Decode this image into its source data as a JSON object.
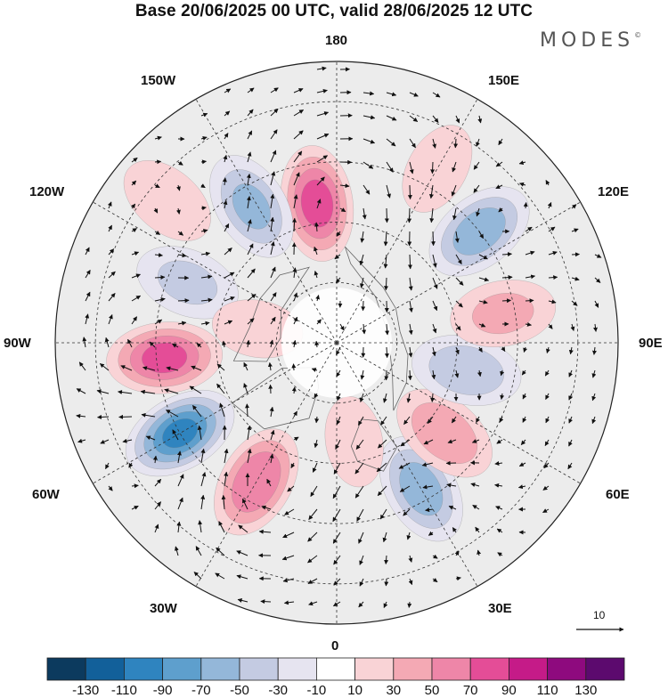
{
  "title": "Base 20/06/2025 00 UTC, valid 28/06/2025 12 UTC",
  "brand": "MODES",
  "brand_mark": "©",
  "longitude_labels": {
    "lon_180": "180",
    "lon_150w": "150W",
    "lon_150e": "150E",
    "lon_120w": "120W",
    "lon_120e": "120E",
    "lon_90w": "90W",
    "lon_90e": "90E",
    "lon_60w": "60W",
    "lon_60e": "60E",
    "lon_30w": "30W",
    "lon_30e": "30E",
    "lon_0": "0"
  },
  "reference_vector": {
    "label": "10",
    "icon": "arrow-right-icon"
  },
  "colorbar": {
    "labels": [
      "-130",
      "-110",
      "-90",
      "-70",
      "-50",
      "-30",
      "-10",
      "10",
      "30",
      "50",
      "70",
      "90",
      "110",
      "130"
    ],
    "colors": [
      "#0c3a5e",
      "#12609a",
      "#2f84bf",
      "#5e9fcd",
      "#94b7d9",
      "#c4cbe2",
      "#e6e4f0",
      "#ffffff",
      "#f9d3d6",
      "#f4a9b4",
      "#ee86a8",
      "#e44d97",
      "#c51b88",
      "#8e0a7e",
      "#5c0a6e"
    ]
  },
  "anomaly_cells": [
    {
      "lon": -30,
      "lat": 50,
      "amp": 70
    },
    {
      "lon": 30,
      "lat": 48,
      "amp": -60
    },
    {
      "lon": 50,
      "lat": 55,
      "amp": 45
    },
    {
      "lon": 78,
      "lat": 57,
      "amp": -45
    },
    {
      "lon": 100,
      "lat": 48,
      "amp": 32
    },
    {
      "lon": 128,
      "lat": 45,
      "amp": -62
    },
    {
      "lon": 150,
      "lat": 40,
      "amp": 15
    },
    {
      "lon": -172,
      "lat": 55,
      "amp": 78
    },
    {
      "lon": -148,
      "lat": 50,
      "amp": -52
    },
    {
      "lon": -130,
      "lat": 35,
      "amp": 22
    },
    {
      "lon": -112,
      "lat": 50,
      "amp": -32
    },
    {
      "lon": -85,
      "lat": 47,
      "amp": 75
    },
    {
      "lon": -60,
      "lat": 45,
      "amp": -92
    },
    {
      "lon": -100,
      "lat": 70,
      "amp": 12
    },
    {
      "lon": 10,
      "lat": 65,
      "amp": 12
    }
  ]
}
